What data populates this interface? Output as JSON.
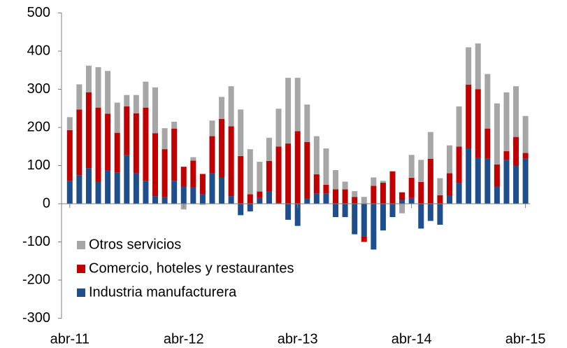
{
  "chart_data": {
    "type": "stacked_bar",
    "categories": [
      "abr-11",
      null,
      null,
      null,
      null,
      null,
      null,
      null,
      null,
      null,
      null,
      null,
      "abr-12",
      null,
      null,
      null,
      null,
      null,
      null,
      null,
      null,
      null,
      null,
      null,
      "abr-13",
      null,
      null,
      null,
      null,
      null,
      null,
      null,
      null,
      null,
      null,
      null,
      "abr-14",
      null,
      null,
      null,
      null,
      null,
      null,
      null,
      null,
      null,
      null,
      null,
      "abr-15"
    ],
    "series": [
      {
        "name": "Industria manufacturera",
        "color": "#1f4e8c",
        "values": [
          60,
          75,
          93,
          57,
          88,
          82,
          127,
          80,
          60,
          20,
          17,
          60,
          45,
          43,
          25,
          80,
          68,
          20,
          -30,
          -20,
          15,
          33,
          2,
          -42,
          -58,
          13,
          27,
          27,
          -35,
          -35,
          -80,
          -85,
          -120,
          -70,
          -35,
          10,
          15,
          -65,
          -45,
          -55,
          22,
          55,
          145,
          120,
          118,
          45,
          115,
          100,
          118
        ]
      },
      {
        "name": "Comercio, hoteles y restaurantes",
        "color": "#c00000",
        "values": [
          133,
          172,
          199,
          195,
          148,
          104,
          128,
          157,
          192,
          165,
          126,
          137,
          52,
          70,
          53,
          97,
          154,
          183,
          125,
          25,
          17,
          79,
          148,
          158,
          190,
          149,
          50,
          23,
          38,
          38,
          18,
          -15,
          47,
          55,
          85,
          20,
          53,
          57,
          118,
          22,
          58,
          95,
          167,
          180,
          79,
          58,
          23,
          75,
          15
        ]
      },
      {
        "name": "Otros servicios",
        "color": "#a6a6a6",
        "values": [
          34,
          66,
          70,
          106,
          112,
          79,
          30,
          48,
          68,
          120,
          55,
          18,
          -15,
          9,
          -3,
          41,
          58,
          105,
          122,
          118,
          78,
          61,
          99,
          172,
          140,
          98,
          100,
          95,
          50,
          20,
          15,
          18,
          22,
          5,
          0,
          -25,
          60,
          58,
          70,
          45,
          73,
          105,
          98,
          120,
          143,
          160,
          154,
          133,
          97
        ]
      }
    ],
    "ylim": [
      -300,
      500
    ],
    "yticks": [
      -300,
      -200,
      -100,
      0,
      100,
      200,
      300,
      400,
      500
    ]
  }
}
